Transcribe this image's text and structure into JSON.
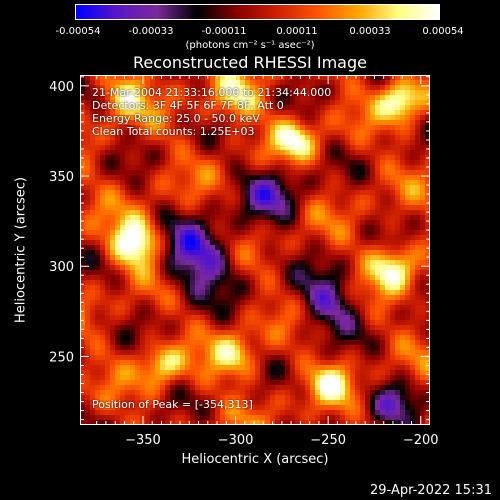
{
  "colorbar": {
    "ticks": [
      "-0.00054",
      "-0.00033",
      "-0.00011",
      "0.00011",
      "0.00033",
      "0.00054"
    ],
    "units": "(photons cm⁻² s⁻¹ asec⁻²)",
    "colors": [
      "#0000ff",
      "#5a16c8",
      "#7a2a9c",
      "#000000",
      "#8b0000",
      "#d02000",
      "#ff5500",
      "#ffa500",
      "#ffff80",
      "#ffffff"
    ]
  },
  "chart_data": {
    "type": "heatmap",
    "title": "Reconstructed RHESSI Image",
    "xlabel": "Heliocentric X (arcsec)",
    "ylabel": "Heliocentric Y (arcsec)",
    "xlim": [
      -384,
      -195
    ],
    "ylim": [
      212,
      406
    ],
    "xticks": [
      -350,
      -300,
      -250,
      -200
    ],
    "yticks": [
      250,
      300,
      350,
      400
    ],
    "xtick_labels": [
      "−350",
      "−300",
      "−250",
      "−200"
    ],
    "ytick_labels": [
      "250",
      "300",
      "350",
      "400"
    ],
    "peak": [
      -354,
      313
    ],
    "annotations": [
      "21-Mar-2004 21:33:16.000 to 21:34:44.000",
      "Detectors: 3F 4F 5F 6F 7F 8F, Att 0",
      "Energy Range: 25.0 - 50.0 keV",
      "Clean     Total counts: 1.25E+03",
      "Position of Peak = [-354,313]"
    ]
  },
  "timestamp": "29-Apr-2022 15:31"
}
